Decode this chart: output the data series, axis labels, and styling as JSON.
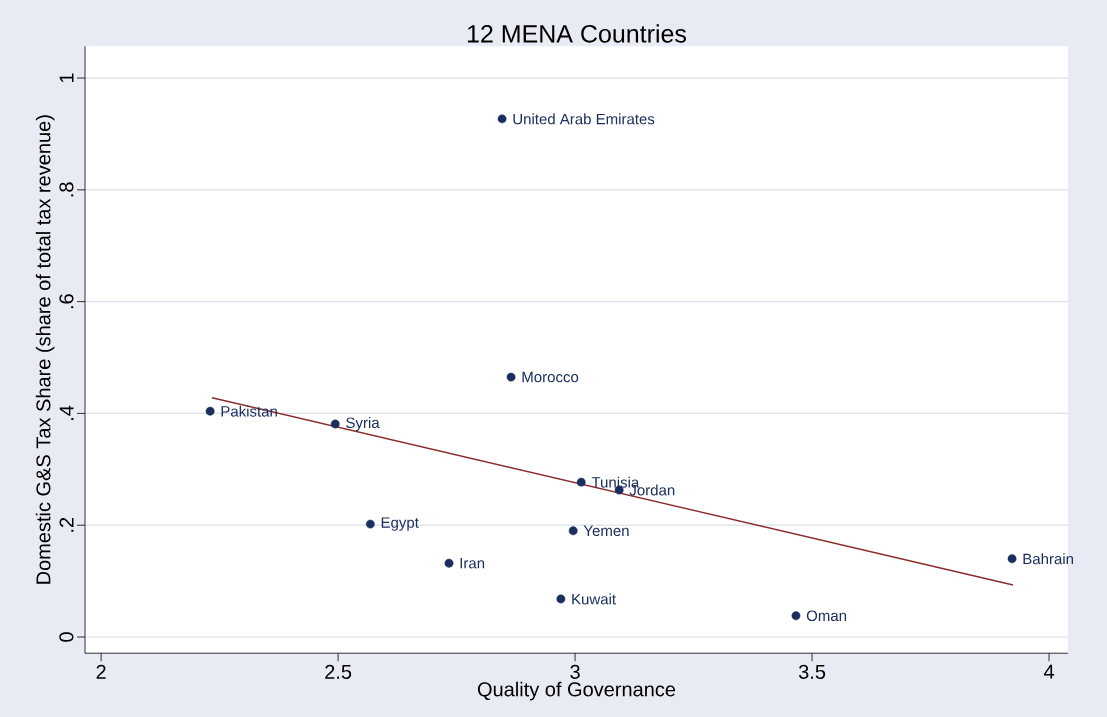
{
  "chart_data": {
    "type": "scatter",
    "title": "12 MENA Countries",
    "xlabel": "Quality of Governance",
    "ylabel": "Domestic G&S Tax Share (share of total tax revenue)",
    "xlim": [
      1.966,
      4.04
    ],
    "ylim": [
      -0.029,
      1.057
    ],
    "xticks": [
      2,
      2.5,
      3,
      3.5,
      4
    ],
    "yticks": [
      {
        "value": 0,
        "label": "0"
      },
      {
        "value": 0.2,
        "label": ".2"
      },
      {
        "value": 0.4,
        "label": ".4"
      },
      {
        "value": 0.6,
        "label": ".6"
      },
      {
        "value": 0.8,
        "label": ".8"
      },
      {
        "value": 1,
        "label": "1"
      }
    ],
    "grid": "y",
    "series": [
      {
        "marker": "circle",
        "color": "#1a2f5e",
        "x": [
          2.23,
          2.494,
          2.846,
          2.865,
          2.568,
          2.734,
          3.013,
          3.093,
          2.996,
          2.97,
          3.466,
          3.922
        ],
        "values": [
          0.404,
          0.381,
          0.927,
          0.465,
          0.202,
          0.132,
          0.277,
          0.263,
          0.19,
          0.068,
          0.038,
          0.14
        ]
      },
      {
        "type": "line",
        "marker": "none",
        "color": "#8b2a2a",
        "x": [
          2.234,
          3.924
        ],
        "values": [
          0.428,
          0.093
        ]
      }
    ],
    "annotations": [
      {
        "text": "Pakistan",
        "x": 2.23,
        "y": 0.404
      },
      {
        "text": "Syria",
        "x": 2.494,
        "y": 0.381
      },
      {
        "text": "United Arab Emirates",
        "x": 2.846,
        "y": 0.927
      },
      {
        "text": "Morocco",
        "x": 2.865,
        "y": 0.465
      },
      {
        "text": "Egypt",
        "x": 2.568,
        "y": 0.202
      },
      {
        "text": "Iran",
        "x": 2.734,
        "y": 0.132
      },
      {
        "text": "Tunisia",
        "x": 3.013,
        "y": 0.277
      },
      {
        "text": "Jordan",
        "x": 3.093,
        "y": 0.263
      },
      {
        "text": "Yemen",
        "x": 2.996,
        "y": 0.19
      },
      {
        "text": "Kuwait",
        "x": 2.97,
        "y": 0.068
      },
      {
        "text": "Oman",
        "x": 3.466,
        "y": 0.038
      },
      {
        "text": "Bahrain",
        "x": 3.922,
        "y": 0.14
      }
    ]
  }
}
